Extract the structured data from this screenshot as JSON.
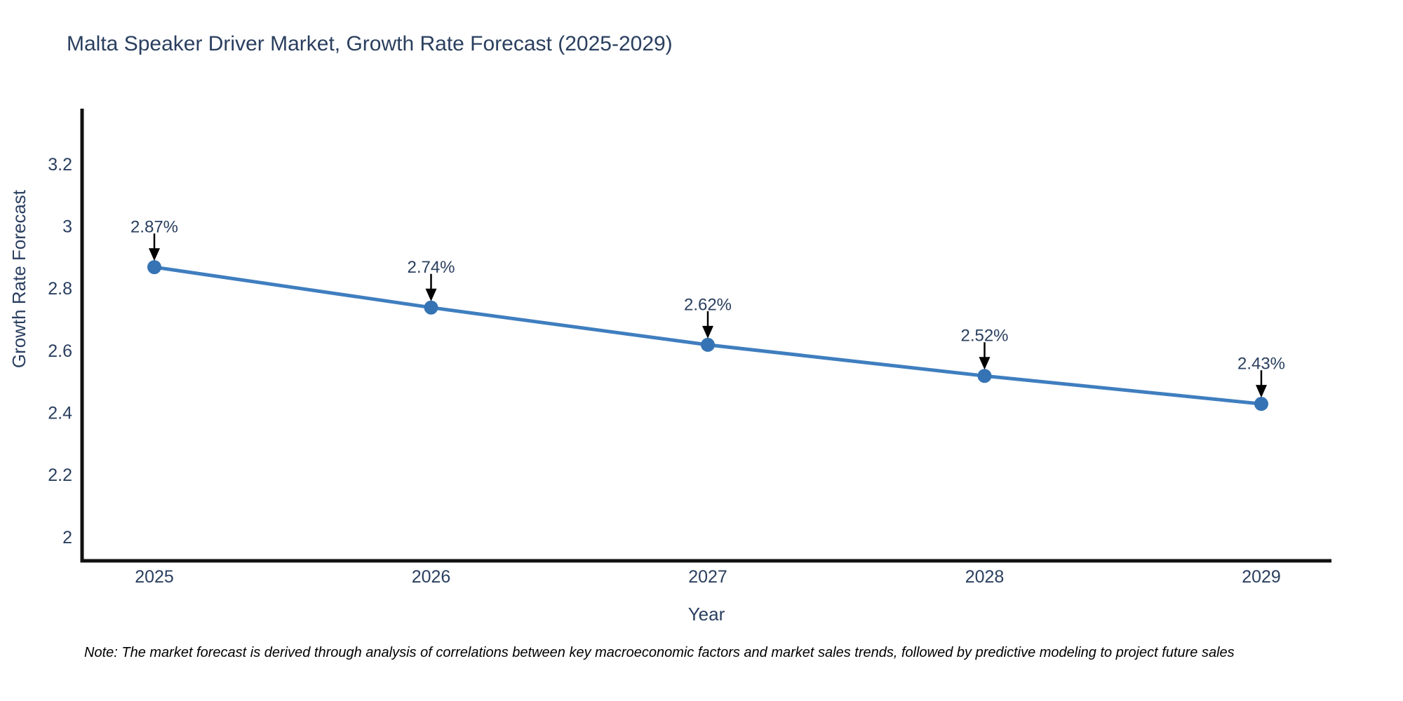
{
  "chart_data": {
    "type": "line",
    "title": "Malta Speaker Driver Market, Growth Rate Forecast (2025-2029)",
    "xlabel": "Year",
    "ylabel": "Growth Rate Forecast",
    "x": [
      2025,
      2026,
      2027,
      2028,
      2029
    ],
    "values": [
      2.87,
      2.74,
      2.62,
      2.52,
      2.43
    ],
    "point_labels": [
      "2.87%",
      "2.74%",
      "2.62%",
      "2.52%",
      "2.43%"
    ],
    "xticks": [
      "2025",
      "2026",
      "2027",
      "2028",
      "2029"
    ],
    "yticks": [
      2,
      2.2,
      2.4,
      2.6,
      2.8,
      3,
      3.2
    ],
    "ylim": [
      1.925,
      3.38
    ],
    "grid": false,
    "legend": false,
    "annotation_style": "down-arrow",
    "colors": {
      "line": "#3f7ebf",
      "marker": "#3573b4",
      "axis": "#111111",
      "text": "#2a3f5f",
      "arrow": "#000000",
      "background": "#ffffff"
    }
  },
  "note": {
    "text": "Note: The market forecast is derived through analysis of correlations between key macroeconomic factors and market sales trends, followed by predictive modeling to project future sales"
  }
}
